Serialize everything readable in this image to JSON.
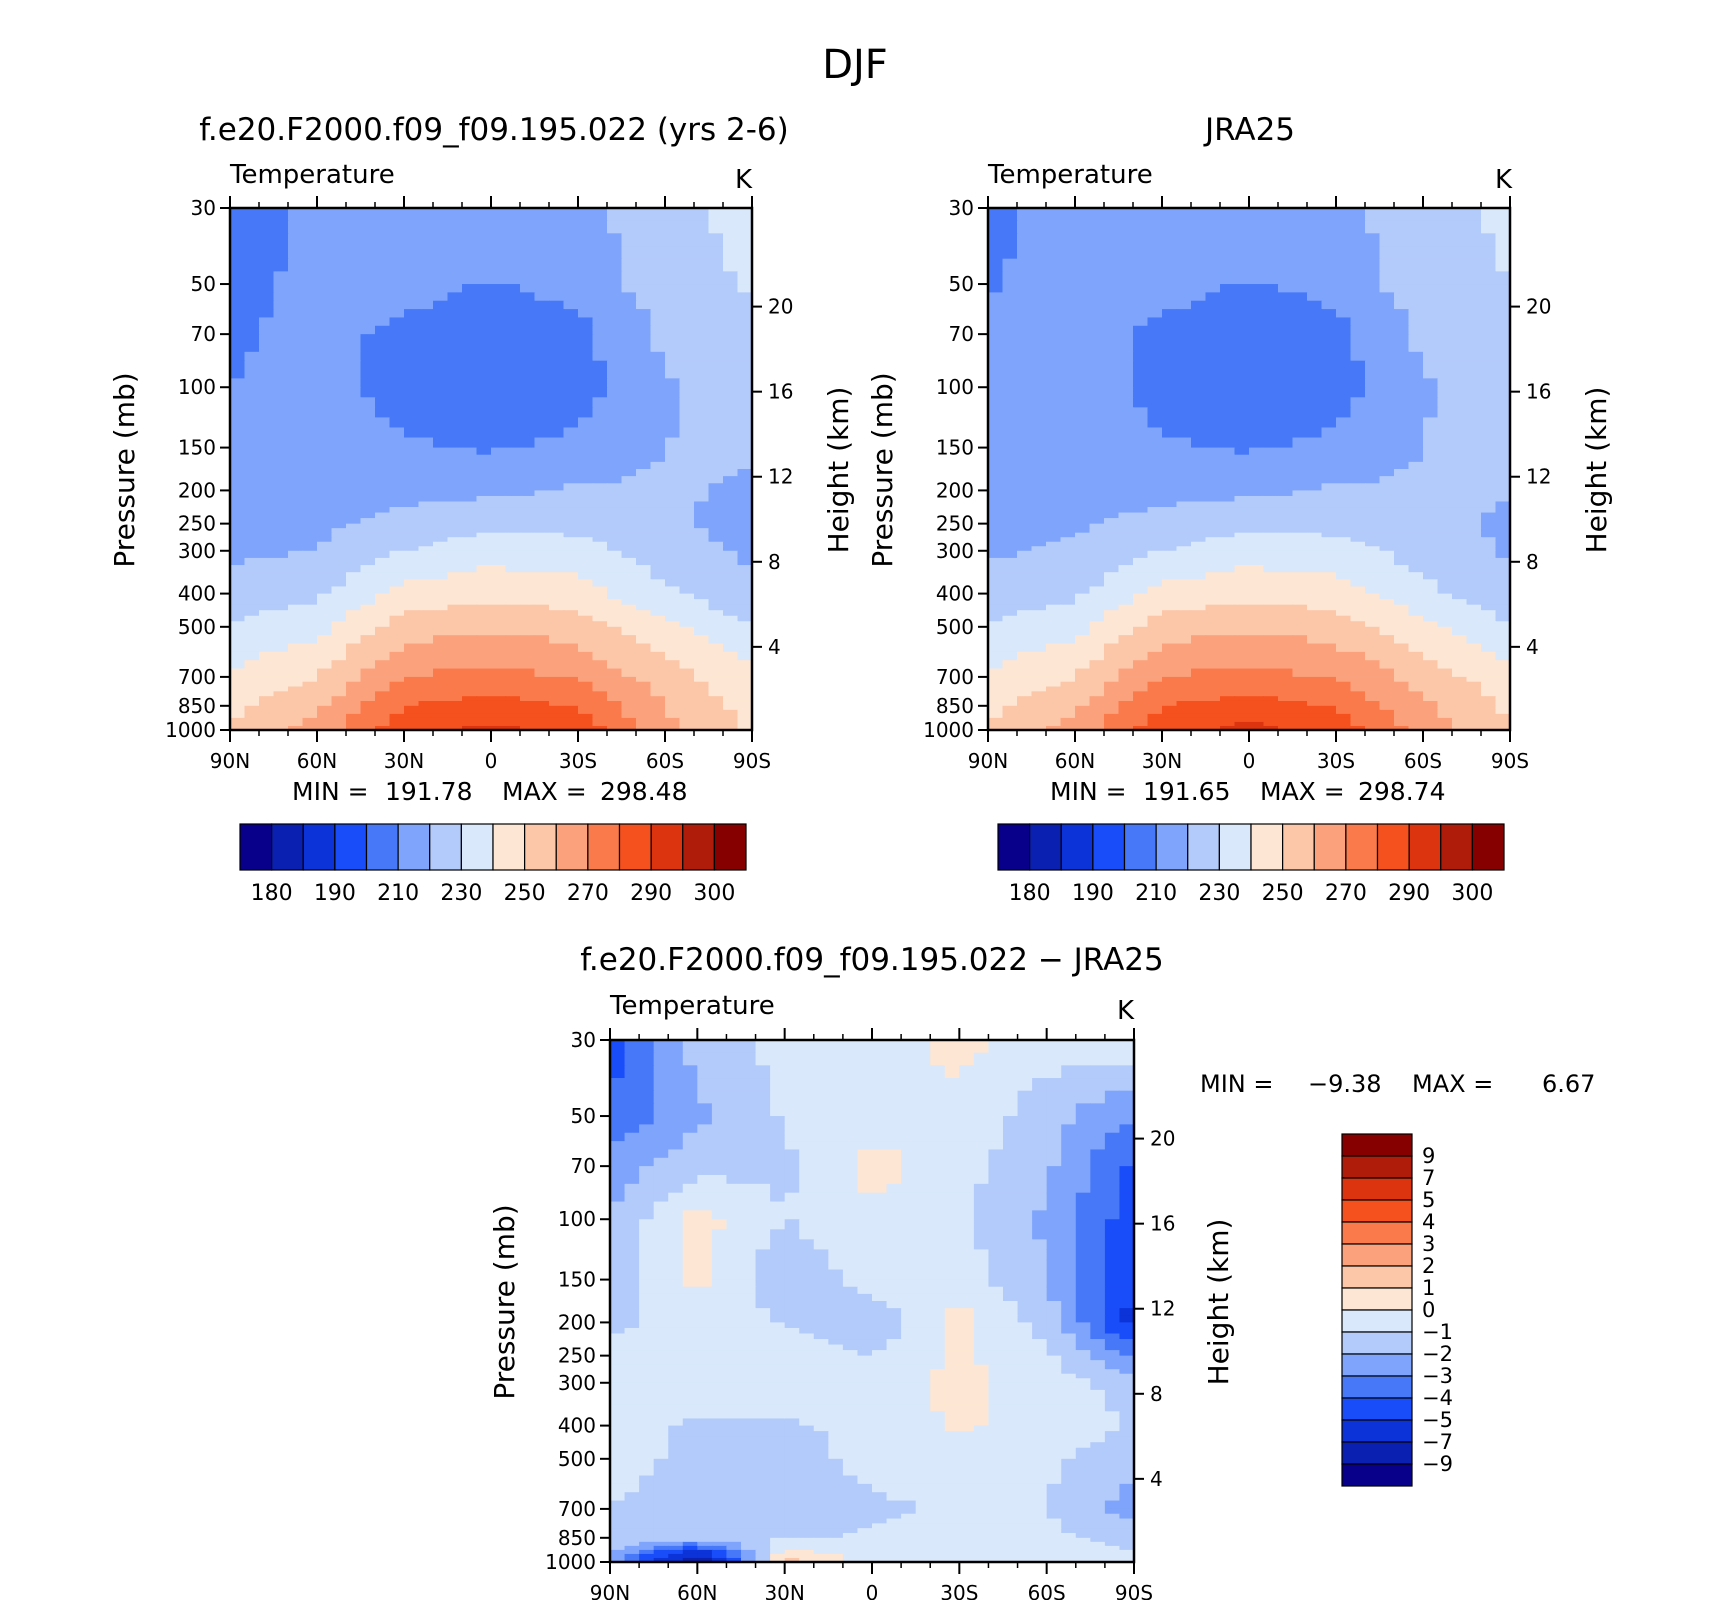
{
  "suptitle": "DJF",
  "axis_common": {
    "pressure_ticks": [
      "30",
      "50",
      "70",
      "100",
      "150",
      "200",
      "250",
      "300",
      "400",
      "500",
      "700",
      "850",
      "1000"
    ],
    "lat_ticks": [
      "90N",
      "60N",
      "30N",
      "0",
      "30S",
      "60S",
      "90S"
    ],
    "height_ticks": [
      "20",
      "16",
      "12",
      "8",
      "4"
    ],
    "ylabel_left": "Pressure (mb)",
    "ylabel_right": "Height (km)"
  },
  "panels": [
    {
      "title": "f.e20.F2000.f09_f09.195.022 (yrs 2-6)",
      "left_string": "Temperature",
      "right_string": "K",
      "min_label": "MIN =",
      "min_value": "191.78",
      "max_label": "MAX =",
      "max_value": "298.48"
    },
    {
      "title": "JRA25",
      "left_string": "Temperature",
      "right_string": "K",
      "min_label": "MIN =",
      "min_value": "191.65",
      "max_label": "MAX =",
      "max_value": "298.74"
    },
    {
      "title": "f.e20.F2000.f09_f09.195.022 − JRA25",
      "left_string": "Temperature",
      "right_string": "K",
      "min_label": "MIN =",
      "min_value": "−9.38",
      "max_label": "MAX =",
      "max_value": "6.67"
    }
  ],
  "colorbars": {
    "absolute": {
      "labels": [
        "180",
        "190",
        "210",
        "230",
        "250",
        "270",
        "290",
        "300"
      ],
      "colors": [
        "#08008a",
        "#0a20b0",
        "#0b33d8",
        "#1a4dfa",
        "#4778f8",
        "#7ea4fb",
        "#b3cbfa",
        "#d9e8fb",
        "#fde6d3",
        "#fcc6a8",
        "#fba27d",
        "#fb7a4c",
        "#f4511f",
        "#dd3410",
        "#b01c0a",
        "#860000"
      ]
    },
    "difference": {
      "labels": [
        "9",
        "7",
        "5",
        "4",
        "3",
        "2",
        "1",
        "0",
        "−1",
        "−2",
        "−3",
        "−4",
        "−5",
        "−7",
        "−9"
      ],
      "colors": [
        "#860000",
        "#b01c0a",
        "#dd3410",
        "#f4511f",
        "#fb7a4c",
        "#fba27d",
        "#fcc6a8",
        "#fde6d3",
        "#d9e8fb",
        "#b3cbfa",
        "#7ea4fb",
        "#4778f8",
        "#1a4dfa",
        "#0b33d8",
        "#0a20b0",
        "#08008a"
      ]
    }
  },
  "chart_data": [
    {
      "type": "heatmap",
      "title": "f.e20.F2000.f09_f09.195.022 (yrs 2-6)",
      "variable": "Temperature",
      "units": "K",
      "x": [
        "90N",
        "60N",
        "30N",
        "0",
        "30S",
        "60S",
        "90S"
      ],
      "y_pressure_mb": [
        30,
        50,
        70,
        100,
        150,
        200,
        250,
        300,
        400,
        500,
        700,
        850,
        1000
      ],
      "y_log_scale": true,
      "values": [
        [
          205,
          212,
          217,
          219,
          216,
          227,
          233
        ],
        [
          205,
          214,
          215,
          209,
          214,
          225,
          231
        ],
        [
          208,
          214,
          207,
          201,
          207,
          222,
          227
        ],
        [
          210,
          214,
          206,
          200,
          206,
          219,
          224
        ],
        [
          212,
          215,
          211,
          209,
          212,
          220,
          222
        ],
        [
          214,
          215,
          217,
          218,
          221,
          222,
          218
        ],
        [
          216,
          218,
          223,
          227,
          227,
          222,
          216
        ],
        [
          218,
          220,
          230,
          236,
          234,
          225,
          218
        ],
        [
          224,
          228,
          243,
          247,
          244,
          232,
          222
        ],
        [
          231,
          237,
          255,
          259,
          255,
          242,
          230
        ],
        [
          242,
          250,
          270,
          273,
          269,
          255,
          242
        ],
        [
          248,
          258,
          280,
          284,
          279,
          260,
          246
        ],
        [
          250,
          265,
          287,
          292,
          287,
          262,
          248
        ]
      ],
      "min": 191.78,
      "max": 298.48
    },
    {
      "type": "heatmap",
      "title": "JRA25",
      "variable": "Temperature",
      "units": "K",
      "x": [
        "90N",
        "60N",
        "30N",
        "0",
        "30S",
        "60S",
        "90S"
      ],
      "y_pressure_mb": [
        30,
        50,
        70,
        100,
        150,
        200,
        250,
        300,
        400,
        500,
        700,
        850,
        1000
      ],
      "y_log_scale": true,
      "values": [
        [
          207,
          214,
          218,
          219,
          216,
          227,
          232
        ],
        [
          209,
          215,
          215,
          209,
          214,
          225,
          230
        ],
        [
          212,
          217,
          207,
          200,
          207,
          222,
          228
        ],
        [
          214,
          217,
          206,
          200,
          206,
          219,
          226
        ],
        [
          215,
          217,
          211,
          209,
          212,
          220,
          224
        ],
        [
          216,
          217,
          217,
          218,
          221,
          222,
          221
        ],
        [
          217,
          219,
          223,
          227,
          227,
          223,
          218
        ],
        [
          219,
          221,
          230,
          236,
          234,
          226,
          219
        ],
        [
          224,
          228,
          243,
          247,
          244,
          233,
          223
        ],
        [
          231,
          237,
          255,
          259,
          255,
          243,
          231
        ],
        [
          242,
          250,
          270,
          273,
          269,
          256,
          244
        ],
        [
          248,
          258,
          280,
          284,
          279,
          262,
          248
        ],
        [
          250,
          265,
          287,
          293,
          287,
          265,
          250
        ]
      ],
      "min": 191.65,
      "max": 298.74
    },
    {
      "type": "heatmap",
      "title": "f.e20.F2000.f09_f09.195.022 − JRA25",
      "variable": "Temperature",
      "units": "K",
      "x": [
        "90N",
        "60N",
        "30N",
        "0",
        "30S",
        "60S",
        "90S"
      ],
      "y_pressure_mb": [
        30,
        50,
        70,
        100,
        150,
        200,
        250,
        300,
        400,
        500,
        700,
        850,
        1000
      ],
      "y_log_scale": true,
      "values": [
        [
          -4.5,
          -1.6,
          -0.6,
          -0.4,
          0.3,
          -0.4,
          -0.3
        ],
        [
          -3.8,
          -2.2,
          -0.9,
          -0.5,
          -0.3,
          -1.6,
          -3.0
        ],
        [
          -2.5,
          -1.4,
          -1.2,
          0.4,
          -0.6,
          -1.8,
          -4.2
        ],
        [
          -2.0,
          0.4,
          -1.0,
          -0.3,
          -0.8,
          -2.2,
          -4.6
        ],
        [
          -1.5,
          0.3,
          -1.8,
          -0.5,
          -0.4,
          -2.0,
          -5.0
        ],
        [
          -1.2,
          -0.6,
          -1.0,
          -1.8,
          0.4,
          -1.4,
          -5.5
        ],
        [
          -0.8,
          -0.5,
          -0.4,
          -1.0,
          0.2,
          -0.8,
          -3.2
        ],
        [
          -0.6,
          -0.4,
          -0.5,
          -0.5,
          0.3,
          -0.5,
          -1.4
        ],
        [
          -0.5,
          -1.2,
          -1.1,
          -0.8,
          0.2,
          -0.4,
          -1.1
        ],
        [
          -0.6,
          -1.3,
          -1.4,
          -0.7,
          -0.6,
          -0.8,
          -1.6
        ],
        [
          -1.0,
          -1.5,
          -1.4,
          -1.2,
          -0.8,
          -1.0,
          -2.5
        ],
        [
          -1.1,
          -1.4,
          -1.1,
          -0.9,
          -0.6,
          -0.7,
          -1.5
        ],
        [
          -2.5,
          -8.5,
          1.4,
          -0.4,
          -0.6,
          -0.4,
          -0.5
        ]
      ],
      "min": -9.38,
      "max": 6.67
    }
  ]
}
